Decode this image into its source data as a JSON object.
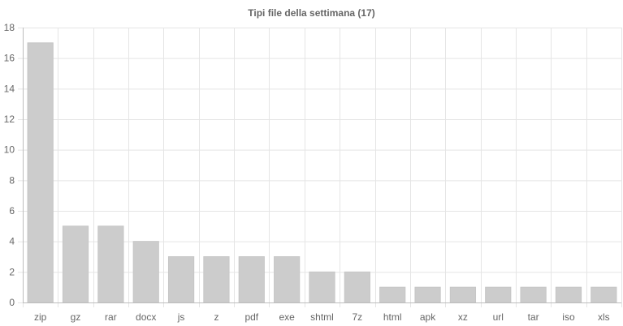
{
  "chart_data": {
    "type": "bar",
    "title": "Tipi file della settimana (17)",
    "xlabel": "",
    "ylabel": "",
    "categories": [
      "zip",
      "gz",
      "rar",
      "docx",
      "js",
      "z",
      "pdf",
      "exe",
      "shtml",
      "7z",
      "html",
      "apk",
      "xz",
      "url",
      "tar",
      "iso",
      "xls"
    ],
    "values": [
      17,
      5,
      5,
      4,
      3,
      3,
      3,
      3,
      2,
      2,
      1,
      1,
      1,
      1,
      1,
      1,
      1
    ],
    "ylim": [
      0,
      18
    ],
    "yticks": [
      0,
      2,
      4,
      6,
      8,
      10,
      12,
      14,
      16,
      18
    ],
    "grid": true,
    "legend": "none",
    "bar_color": "#cccccc",
    "grid_color": "#e5e5e5",
    "text_color": "#666666"
  }
}
